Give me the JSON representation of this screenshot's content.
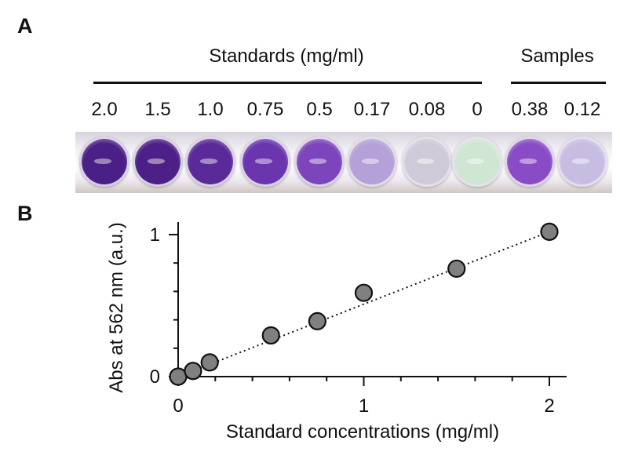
{
  "panels": {
    "a": "A",
    "b": "B"
  },
  "standards_title": "Standards (mg/ml)",
  "samples_title": "Samples",
  "standards": [
    "2.0",
    "1.5",
    "1.0",
    "0.75",
    "0.5",
    "0.17",
    "0.08",
    "0"
  ],
  "samples": [
    "0.38",
    "0.12"
  ],
  "colors": {
    "wells": [
      "#4a1f86",
      "#4d2088",
      "#5a2a98",
      "#6b36ad",
      "#7c45bb",
      "#b6a0d8",
      "#cfcad8",
      "#cfe6d2",
      "#8a4cc6",
      "#c7bde3"
    ],
    "marker": "#808080",
    "marker_edge": "#111111"
  },
  "chart_data": {
    "type": "scatter",
    "title": "",
    "xlabel": "Standard concentrations (mg/ml)",
    "ylabel": "Abs at 562 nm (a.u.)",
    "xlim": [
      0,
      2.1
    ],
    "ylim": [
      0,
      1.1
    ],
    "xticks": [
      "0",
      "1",
      "2"
    ],
    "yticks": [
      "0",
      "1"
    ],
    "x": [
      0,
      0.08,
      0.17,
      0.5,
      0.75,
      1.0,
      1.5,
      2.0
    ],
    "y": [
      0.0,
      0.04,
      0.1,
      0.29,
      0.39,
      0.59,
      0.76,
      1.02
    ],
    "trendline": {
      "style": "dotted",
      "from": [
        0,
        0.0
      ],
      "to": [
        2.0,
        1.02
      ]
    }
  }
}
